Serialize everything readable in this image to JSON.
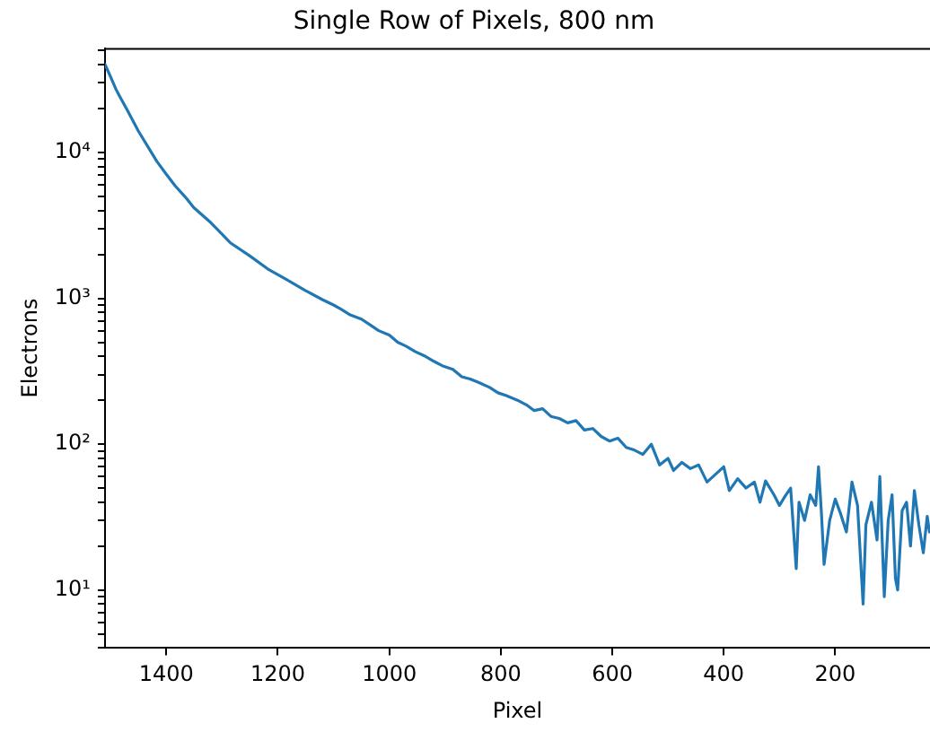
{
  "chart_data": {
    "type": "line",
    "title": "Single Row of Pixels, 800 nm",
    "xlabel": "Pixel",
    "ylabel": "Electrons",
    "log": "y",
    "grid": false,
    "legend": false,
    "marker": "none",
    "line_style": "solid",
    "xlim": [
      1510,
      30
    ],
    "xticks": [
      1400,
      1200,
      1000,
      800,
      600,
      400,
      200
    ],
    "ylim": [
      4,
      52000
    ],
    "yticks": [
      {
        "value": 4,
        "label": null
      },
      {
        "value": 5,
        "label": null
      },
      {
        "value": 6,
        "label": null
      },
      {
        "value": 7,
        "label": null
      },
      {
        "value": 8,
        "label": null
      },
      {
        "value": 9,
        "label": null
      },
      {
        "value": 10,
        "label": "10¹"
      },
      {
        "value": 20,
        "label": null
      },
      {
        "value": 30,
        "label": null
      },
      {
        "value": 40,
        "label": null
      },
      {
        "value": 50,
        "label": null
      },
      {
        "value": 60,
        "label": null
      },
      {
        "value": 70,
        "label": null
      },
      {
        "value": 80,
        "label": null
      },
      {
        "value": 90,
        "label": null
      },
      {
        "value": 100,
        "label": "10²"
      },
      {
        "value": 200,
        "label": null
      },
      {
        "value": 300,
        "label": null
      },
      {
        "value": 400,
        "label": null
      },
      {
        "value": 500,
        "label": null
      },
      {
        "value": 600,
        "label": null
      },
      {
        "value": 700,
        "label": null
      },
      {
        "value": 800,
        "label": null
      },
      {
        "value": 900,
        "label": null
      },
      {
        "value": 1000,
        "label": "10³"
      },
      {
        "value": 2000,
        "label": null
      },
      {
        "value": 3000,
        "label": null
      },
      {
        "value": 4000,
        "label": null
      },
      {
        "value": 5000,
        "label": null
      },
      {
        "value": 6000,
        "label": null
      },
      {
        "value": 7000,
        "label": null
      },
      {
        "value": 8000,
        "label": null
      },
      {
        "value": 9000,
        "label": null
      },
      {
        "value": 10000,
        "label": "10⁴"
      },
      {
        "value": 20000,
        "label": null
      },
      {
        "value": 30000,
        "label": null
      },
      {
        "value": 40000,
        "label": null
      },
      {
        "value": 50000,
        "label": null
      }
    ],
    "series": [
      {
        "color": "#1f77b4",
        "x": [
          1510,
          1500,
          1490,
          1484,
          1470,
          1450,
          1430,
          1417,
          1400,
          1384,
          1365,
          1351,
          1320,
          1285,
          1250,
          1218,
          1185,
          1152,
          1120,
          1100,
          1086,
          1070,
          1050,
          1035,
          1019,
          1000,
          985,
          970,
          953,
          935,
          920,
          905,
          886,
          870,
          855,
          840,
          820,
          805,
          790,
          770,
          754,
          740,
          725,
          710,
          695,
          680,
          665,
          650,
          635,
          620,
          605,
          590,
          575,
          560,
          545,
          530,
          515,
          500,
          490,
          475,
          460,
          445,
          430,
          415,
          400,
          390,
          375,
          360,
          345,
          335,
          325,
          310,
          300,
          290,
          280,
          270,
          265,
          255,
          245,
          235,
          230,
          225,
          220,
          210,
          200,
          190,
          180,
          170,
          160,
          150,
          145,
          135,
          125,
          120,
          112,
          105,
          98,
          92,
          88,
          80,
          72,
          65,
          58,
          50,
          42,
          35,
          31
        ],
        "values": [
          40300,
          33000,
          27000,
          24400,
          19500,
          14000,
          10500,
          8700,
          7100,
          5900,
          4900,
          4200,
          3300,
          2400,
          1950,
          1590,
          1350,
          1140,
          980,
          900,
          840,
          770,
          720,
          660,
          600,
          560,
          500,
          470,
          430,
          400,
          370,
          345,
          326,
          290,
          280,
          265,
          245,
          225,
          215,
          200,
          186,
          170,
          175,
          155,
          150,
          140,
          145,
          125,
          128,
          113,
          105,
          110,
          95,
          91,
          85,
          100,
          72,
          80,
          66,
          75,
          68,
          72,
          55,
          62,
          70,
          48,
          58,
          50,
          55,
          40,
          56,
          45,
          38,
          44,
          50,
          14,
          40,
          30,
          45,
          38,
          70,
          35,
          15,
          30,
          42,
          33,
          25,
          55,
          38,
          8,
          28,
          40,
          22,
          60,
          9,
          30,
          45,
          12,
          10,
          35,
          40,
          20,
          48,
          28,
          18,
          32,
          25
        ]
      }
    ]
  }
}
